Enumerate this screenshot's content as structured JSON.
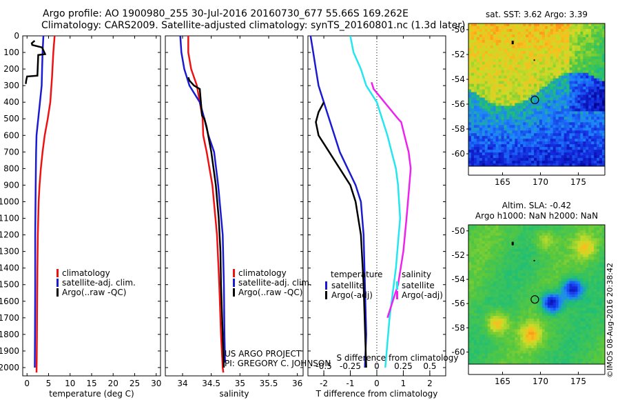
{
  "header": {
    "title1": "Argo profile: AO 1900980_255 30-Jul-2016 20160730_677 55.66S 169.262E",
    "title2": "Climatology: CARS2009. Satellite-adjusted climatology: synTS_20160801.nc (1.3d later)"
  },
  "footer": {
    "project": "US ARGO PROJECT",
    "pi": "PI: GREGORY C. JOHNSON",
    "stamp": "©IMOS 08-Aug-2016 20:38:42"
  },
  "colors": {
    "climatology": "#ee1111",
    "satellite": "#1a1ad0",
    "argo": "#000000",
    "sal_satellite": "#22e6f0",
    "sal_argo": "#ee22ee"
  },
  "chart_data": [
    {
      "type": "line",
      "id": "temperature",
      "xlabel": "temperature (deg C)",
      "ylabel": "",
      "xlim": [
        -1,
        31
      ],
      "ylim": [
        2050,
        0
      ],
      "xticks": [
        0,
        5,
        10,
        15,
        20,
        25,
        30
      ],
      "yticks": [
        0,
        100,
        200,
        300,
        400,
        500,
        600,
        700,
        800,
        900,
        1000,
        1100,
        1200,
        1300,
        1400,
        1500,
        1600,
        1700,
        1800,
        1900,
        2000
      ],
      "legend": [
        "climatology",
        "satellite-adj. clim.",
        "Argo(..raw -QC)"
      ],
      "series": [
        {
          "name": "climatology",
          "color": "#ee1111",
          "x": [
            6.4,
            6.1,
            5.8,
            5.4,
            4.8,
            4.1,
            3.6,
            3.2,
            2.9,
            2.7,
            2.6,
            2.5,
            2.4,
            2.35,
            2.3,
            2.25,
            2.2
          ],
          "y": [
            0,
            100,
            250,
            400,
            500,
            600,
            700,
            800,
            900,
            1000,
            1100,
            1200,
            1400,
            1600,
            1800,
            1950,
            2030
          ]
        },
        {
          "name": "satellite-adj. clim.",
          "color": "#1a1ad0",
          "x": [
            3.8,
            3.6,
            3.5,
            3.4,
            3.0,
            2.6,
            2.2,
            2.1,
            2.0,
            1.9,
            1.9,
            1.85,
            1.8
          ],
          "y": [
            0,
            100,
            200,
            300,
            400,
            500,
            600,
            700,
            900,
            1200,
            1500,
            1800,
            2000
          ]
        },
        {
          "name": "Argo(..raw -QC)",
          "color": "#000000",
          "x": [
            1.8,
            1.5,
            1.3,
            1.1,
            1.2,
            3.5,
            4.2,
            2.6,
            2.4,
            0.0,
            -0.2,
            -0.3
          ],
          "y": [
            30,
            35,
            40,
            45,
            55,
            70,
            110,
            115,
            240,
            245,
            270,
            290
          ]
        }
      ]
    },
    {
      "type": "line",
      "id": "salinity",
      "xlabel": "salinity",
      "xlim": [
        33.7,
        36.1
      ],
      "ylim": [
        2050,
        0
      ],
      "xticks": [
        34,
        34.5,
        35,
        35.5,
        36
      ],
      "xticklabels": [
        "34",
        "34.5",
        "35",
        "35.5",
        "36"
      ],
      "legend": [
        "climatology",
        "satellite-adj. clim.",
        "Argo(..raw -QC)"
      ],
      "series": [
        {
          "name": "climatology",
          "color": "#ee1111",
          "x": [
            34.1,
            34.1,
            34.15,
            34.25,
            34.3,
            34.35,
            34.36,
            34.42,
            34.52,
            34.6,
            34.64,
            34.67,
            34.7,
            34.71
          ],
          "y": [
            0,
            100,
            200,
            300,
            400,
            500,
            600,
            700,
            900,
            1200,
            1500,
            1800,
            2000,
            2030
          ]
        },
        {
          "name": "satellite-adj. clim.",
          "color": "#1a1ad0",
          "x": [
            33.96,
            33.98,
            34.03,
            34.12,
            34.3,
            34.38,
            34.45,
            34.55,
            34.62,
            34.7,
            34.72,
            34.73,
            34.74
          ],
          "y": [
            0,
            100,
            200,
            300,
            400,
            500,
            600,
            700,
            900,
            1200,
            1500,
            1800,
            1970
          ]
        },
        {
          "name": "Argo(..raw -QC)",
          "color": "#000000",
          "x": [
            34.1,
            34.12,
            34.2,
            34.3,
            34.34,
            34.38,
            34.42,
            34.5,
            34.58,
            34.63,
            34.66,
            34.67,
            34.7,
            34.72
          ],
          "y": [
            250,
            270,
            300,
            320,
            480,
            500,
            550,
            700,
            900,
            1100,
            1300,
            1500,
            1800,
            2000
          ]
        }
      ]
    },
    {
      "type": "line",
      "id": "differences",
      "xlabel": "T difference from climatology",
      "xlabel2": "S difference from climatology",
      "xlim": [
        -2.6,
        2.6
      ],
      "ylim": [
        2050,
        0
      ],
      "xticks": [
        -2,
        -1,
        0,
        1,
        2
      ],
      "sticks": [
        -0.5,
        -0.25,
        0,
        0.25,
        0.5
      ],
      "sticklabels": [
        "-0.5",
        "-0.25",
        "0",
        "0.25",
        "0.5"
      ],
      "legend_t_title": "temperature",
      "legend_s_title": "salinity",
      "legend_t": [
        "satellite",
        "Argo(-adj)"
      ],
      "legend_s": [
        "satellite",
        "Argo(-adj)"
      ],
      "series": [
        {
          "name": "T satellite",
          "color": "#1a1ad0",
          "x": [
            -2.5,
            -2.4,
            -2.3,
            -2.2,
            -2.0,
            -1.8,
            -1.6,
            -1.4,
            -1.1,
            -0.8,
            -0.6,
            -0.5,
            -0.45,
            -0.4,
            -0.45
          ],
          "y": [
            0,
            100,
            200,
            300,
            400,
            500,
            600,
            700,
            800,
            900,
            1000,
            1200,
            1500,
            1800,
            2000
          ]
        },
        {
          "name": "T Argo(-adj)",
          "color": "#000000",
          "x": [
            -2.0,
            -2.2,
            -2.3,
            -2.2,
            -2.0,
            -1.8,
            -1.6,
            -1.4,
            -1.2,
            -1.0,
            -0.8,
            -0.6,
            -0.5,
            -0.4
          ],
          "y": [
            400,
            460,
            520,
            600,
            650,
            700,
            750,
            800,
            850,
            900,
            1000,
            1200,
            1500,
            2000
          ]
        },
        {
          "name": "S satellite",
          "color": "#22e6f0",
          "x": [
            -0.25,
            -0.22,
            -0.15,
            -0.1,
            0.0,
            0.05,
            0.1,
            0.14,
            0.18,
            0.2,
            0.22,
            0.18,
            0.12,
            0.08
          ],
          "y": [
            0,
            100,
            200,
            300,
            400,
            500,
            600,
            700,
            800,
            900,
            1100,
            1400,
            1700,
            2000
          ]
        },
        {
          "name": "S Argo(-adj)",
          "color": "#ee22ee",
          "x": [
            -0.05,
            -0.03,
            0.2,
            0.23,
            0.28,
            0.3,
            0.32,
            0.3,
            0.28,
            0.25,
            0.2,
            0.1
          ],
          "y": [
            280,
            320,
            500,
            520,
            650,
            700,
            800,
            950,
            1100,
            1300,
            1500,
            1700
          ]
        }
      ]
    },
    {
      "type": "heatmap",
      "id": "sst_map",
      "title": "sat. SST: 3.62 Argo: 3.39",
      "xlim": [
        160.5,
        178.5
      ],
      "ylim": [
        -61,
        -49.5
      ],
      "xticks": [
        165,
        170,
        175
      ],
      "yticks": [
        -50,
        -52,
        -54,
        -56,
        -58,
        -60
      ],
      "marker": {
        "lon": 169.262,
        "lat": -55.66
      }
    },
    {
      "type": "heatmap",
      "id": "sla_map",
      "title": "Altim. SLA: -0.42",
      "title2": "Argo h1000: NaN h2000: NaN",
      "xlim": [
        160.5,
        178.5
      ],
      "ylim": [
        -61,
        -49.5
      ],
      "xticks": [
        165,
        170,
        175
      ],
      "yticks": [
        -50,
        -52,
        -54,
        -56,
        -58,
        -60
      ],
      "marker": {
        "lon": 169.262,
        "lat": -55.66
      }
    }
  ]
}
